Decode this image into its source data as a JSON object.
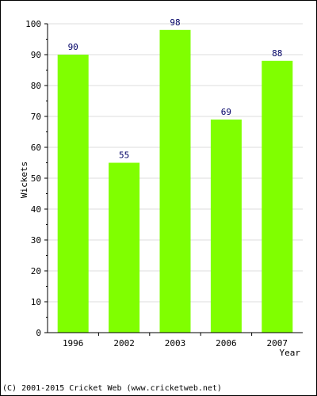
{
  "chart_data": {
    "type": "bar",
    "categories": [
      "1996",
      "2002",
      "2003",
      "2006",
      "2007"
    ],
    "values": [
      90,
      55,
      98,
      69,
      88
    ],
    "data_labels": [
      "90",
      "55",
      "98",
      "69",
      "88"
    ],
    "title": "",
    "xlabel": "Year",
    "ylabel": "Wickets",
    "ylim": [
      0,
      100
    ],
    "yticks": [
      "0",
      "10",
      "20",
      "30",
      "40",
      "50",
      "60",
      "70",
      "80",
      "90",
      "100"
    ],
    "grid": true,
    "bar_color": "#80ff00",
    "label_color": "#000066"
  },
  "footer": {
    "copyright": "(C) 2001-2015 Cricket Web (www.cricketweb.net)"
  }
}
